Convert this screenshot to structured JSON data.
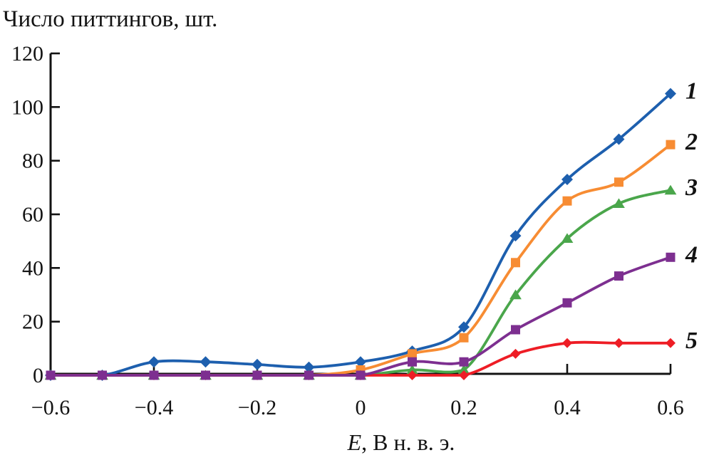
{
  "figure": {
    "background": "#ffffff",
    "axis_color": "#131313"
  },
  "chart_data": {
    "type": "line",
    "title": "",
    "ylabel": "Число питтингов, шт.",
    "xlabel": "E, В н. в. э.",
    "xlabel_parts": {
      "var": "E",
      "rest": ", В н. в. э."
    },
    "xlim": [
      -0.6,
      0.6
    ],
    "ylim": [
      0,
      120
    ],
    "grid": false,
    "legend_position": "right end of each curve, colored italic numerals",
    "x": [
      -0.6,
      -0.5,
      -0.4,
      -0.3,
      -0.2,
      -0.1,
      0,
      0.1,
      0.2,
      0.3,
      0.4,
      0.5,
      0.6
    ],
    "x_tick_values": [
      -0.6,
      -0.4,
      -0.2,
      0,
      0.2,
      0.4,
      0.6
    ],
    "x_tick_labels": [
      "−0.6",
      "−0.4",
      "−0.2",
      "0",
      "0.2",
      "0.4",
      "0.6"
    ],
    "y_tick_values": [
      0,
      20,
      40,
      60,
      80,
      100,
      120
    ],
    "series": [
      {
        "name": "1",
        "color": "#1d5fae",
        "marker": "diamond",
        "marker_size": 8,
        "z": 1,
        "values": [
          0,
          0,
          5,
          5,
          4,
          3,
          5,
          9,
          18,
          52,
          73,
          88,
          105
        ]
      },
      {
        "name": "2",
        "color": "#f78c33",
        "marker": "square",
        "marker_size": 6.5,
        "z": 2,
        "values": [
          0,
          0,
          0,
          0,
          0,
          0,
          2,
          8,
          14,
          42,
          65,
          72,
          86
        ]
      },
      {
        "name": "3",
        "color": "#4aa64b",
        "marker": "triangle",
        "marker_size": 7.5,
        "z": 3,
        "values": [
          0,
          0,
          0,
          0,
          0,
          0,
          0,
          2,
          2,
          30,
          51,
          64,
          69
        ]
      },
      {
        "name": "4",
        "color": "#7d2f90",
        "marker": "square",
        "marker_size": 6.5,
        "z": 5,
        "values": [
          0,
          0,
          0,
          0,
          0,
          0,
          0,
          5,
          5,
          17,
          27,
          37,
          44
        ]
      },
      {
        "name": "5",
        "color": "#ee1d25",
        "marker": "diamond",
        "marker_size": 7,
        "z": 4,
        "values": [
          0,
          0,
          0,
          0,
          0,
          0,
          0,
          0,
          0,
          8,
          12,
          12,
          12
        ]
      }
    ]
  }
}
